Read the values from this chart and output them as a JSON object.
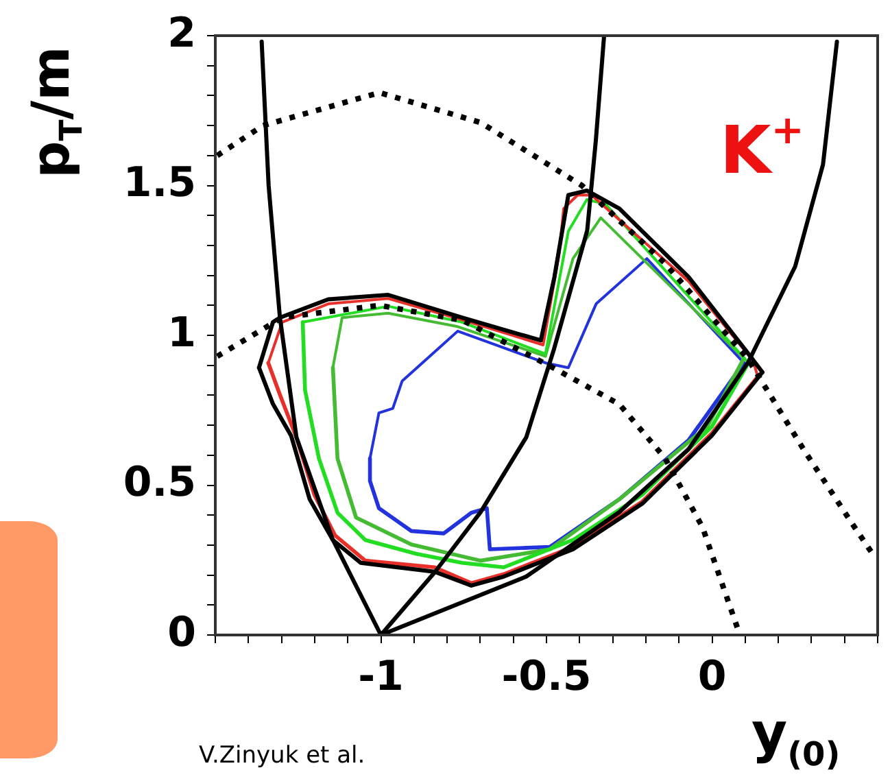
{
  "chart_data": {
    "type": "line",
    "xlabel": "y$_{(0)}$",
    "ylabel": "p$_{T}$/m",
    "annotations": [
      "K$^{+}$",
      "V.Zinyuk et al."
    ],
    "xlim": [
      -1.5,
      0.5
    ],
    "ylim": [
      0,
      2
    ],
    "xticks": [
      {
        "value": -1.5,
        "label": null
      },
      {
        "value": -1.4,
        "label": null
      },
      {
        "value": -1.3,
        "label": null
      },
      {
        "value": -1.2,
        "label": null
      },
      {
        "value": -1.1,
        "label": null
      },
      -1,
      {
        "value": -0.9,
        "label": null
      },
      {
        "value": -0.8,
        "label": null
      },
      {
        "value": -0.7,
        "label": null
      },
      {
        "value": -0.6,
        "label": null
      },
      -0.5,
      {
        "value": -0.4,
        "label": null
      },
      {
        "value": -0.3,
        "label": null
      },
      {
        "value": -0.2,
        "label": null
      },
      {
        "value": -0.1,
        "label": null
      },
      0,
      {
        "value": 0.1,
        "label": null
      },
      {
        "value": 0.2,
        "label": null
      },
      {
        "value": 0.3,
        "label": null
      },
      {
        "value": 0.4,
        "label": null
      },
      {
        "value": 0.5,
        "label": null
      }
    ],
    "yticks": [
      0,
      {
        "value": 0.1,
        "label": null
      },
      {
        "value": 0.2,
        "label": null
      },
      {
        "value": 0.3,
        "label": null
      },
      {
        "value": 0.4,
        "label": null
      },
      0.5,
      {
        "value": 0.6,
        "label": null
      },
      {
        "value": 0.7,
        "label": null
      },
      {
        "value": 0.8,
        "label": null
      },
      {
        "value": 0.9,
        "label": null
      },
      1,
      {
        "value": 1.1,
        "label": null
      },
      {
        "value": 1.2,
        "label": null
      },
      {
        "value": 1.3,
        "label": null
      },
      {
        "value": 1.4,
        "label": null
      },
      1.5,
      {
        "value": 1.6,
        "label": null
      },
      {
        "value": 1.7,
        "label": null
      },
      {
        "value": 1.8,
        "label": null
      },
      {
        "value": 1.9,
        "label": null
      },
      2
    ],
    "grid": false,
    "legend": false,
    "marker": "none",
    "series": [
      {
        "color": "#000000",
        "line_style": "solid",
        "x": [
          -1.36,
          -1.339,
          -1.305,
          -1.255,
          -1.146,
          -1.0
        ],
        "values": [
          1.98,
          1.5,
          1.06,
          0.66,
          0.32,
          0
        ]
      },
      {
        "color": "#000000",
        "line_style": "solid",
        "x": [
          -0.326,
          -0.351,
          -0.377,
          -0.477,
          -0.561,
          -0.699,
          -0.837,
          -1
        ],
        "values": [
          2.0,
          1.65,
          1.35,
          0.955,
          0.66,
          0.41,
          0.21,
          0
        ]
      },
      {
        "color": "#000000",
        "line_style": "solid",
        "x": [
          0.377,
          0.335,
          0.251,
          0.109,
          -0.071,
          -0.28,
          -0.561,
          -1
        ],
        "values": [
          1.98,
          1.57,
          1.23,
          0.91,
          0.62,
          0.41,
          0.195,
          0
        ]
      },
      {
        "color": "#000000",
        "line_style": "dotted",
        "x": [
          -1.494,
          -1.356,
          -1.004,
          -0.699,
          -0.393,
          -0.142,
          0.109,
          0.276,
          0.418,
          0.485
        ],
        "values": [
          1.6,
          1.7,
          1.81,
          1.71,
          1.5,
          1.24,
          0.92,
          0.62,
          0.38,
          0.27
        ]
      },
      {
        "color": "#000000",
        "line_style": "dotted",
        "x": [
          -1.494,
          -1.297,
          -1.004,
          -0.753,
          -0.477,
          -0.28,
          -0.142,
          -0.029,
          0.084
        ],
        "values": [
          0.93,
          1.06,
          1.1,
          1.05,
          0.89,
          0.77,
          0.59,
          0.36,
          0
        ]
      },
      {
        "color": "#000000",
        "line_style": "solid",
        "x": [
          -1.368,
          -1.326,
          -1.305,
          -1.159,
          -0.978,
          -0.755,
          -0.517,
          -0.476,
          -0.434,
          -0.378,
          -0.28,
          -0.071,
          0.11,
          0.152
        ],
        "values": [
          0.892,
          1.044,
          1.059,
          1.12,
          1.135,
          1.059,
          0.983,
          1.195,
          1.468,
          1.483,
          1.423,
          1.195,
          0.938,
          0.877
        ]
      },
      {
        "color": "#000000",
        "line_style": "solid",
        "x": [
          -1.368,
          -1.326,
          -1.271,
          -1.215,
          -1.145,
          -1.061,
          -0.95,
          -0.838,
          -0.727,
          -0.629,
          -0.42,
          -0.211,
          -0.001,
          0.152
        ],
        "values": [
          0.892,
          0.771,
          0.665,
          0.453,
          0.317,
          0.241,
          0.226,
          0.211,
          0.165,
          0.195,
          0.286,
          0.438,
          0.665,
          0.877
        ]
      },
      {
        "color": "#e8302a",
        "line_style": "solid",
        "x": [
          -1.34,
          -1.298,
          -1.159,
          -0.978,
          -0.755,
          -0.51,
          -0.462,
          -0.448,
          -0.406,
          -0.364,
          -0.071,
          0.124,
          0.138
        ],
        "values": [
          0.908,
          1.044,
          1.105,
          1.123,
          1.052,
          0.968,
          1.271,
          1.423,
          1.468,
          1.468,
          1.18,
          0.915,
          0.862
        ]
      },
      {
        "color": "#e8302a",
        "line_style": "solid",
        "x": [
          -1.34,
          -1.305,
          -1.257,
          -1.201,
          -1.138,
          -1.047,
          -0.838,
          -0.727,
          -0.629,
          -0.42,
          -0.211,
          -0.001,
          0.138
        ],
        "values": [
          0.908,
          0.802,
          0.665,
          0.468,
          0.332,
          0.248,
          0.226,
          0.173,
          0.203,
          0.294,
          0.445,
          0.673,
          0.862
        ]
      },
      {
        "color": "#22dd22",
        "line_style": "solid",
        "x": [
          -1.236,
          -0.978,
          -0.755,
          -0.503,
          -0.434,
          -0.378,
          -0.322,
          0.11
        ],
        "values": [
          1.044,
          1.097,
          1.044,
          0.938,
          1.347,
          1.453,
          1.438,
          0.908
        ]
      },
      {
        "color": "#22dd22",
        "line_style": "solid",
        "x": [
          -1.236,
          -1.229,
          -1.187,
          -1.131,
          -1.047,
          -0.894,
          -0.755,
          -0.629,
          -0.42,
          -0.211,
          -0.001,
          0.11
        ],
        "values": [
          1.044,
          0.817,
          0.589,
          0.408,
          0.317,
          0.271,
          0.241,
          0.226,
          0.317,
          0.468,
          0.695,
          0.908
        ]
      },
      {
        "color": "#44bb33",
        "line_style": "solid",
        "x": [
          -1.145,
          -1.117,
          -0.978,
          -0.768,
          -0.503,
          -0.42,
          -0.336,
          0.096
        ],
        "values": [
          0.892,
          1.059,
          1.074,
          1.029,
          0.93,
          1.256,
          1.392,
          0.923
        ]
      },
      {
        "color": "#44bb33",
        "line_style": "solid",
        "x": [
          -1.145,
          -1.131,
          -1.075,
          -0.908,
          -0.699,
          -0.49,
          -0.28,
          -0.015,
          0.096
        ],
        "values": [
          0.892,
          0.589,
          0.392,
          0.302,
          0.248,
          0.286,
          0.453,
          0.695,
          0.923
        ]
      },
      {
        "color": "#2233dd",
        "line_style": "solid",
        "x": [
          -1.033,
          -1.006,
          -0.964,
          -0.936,
          -0.768,
          -0.503,
          -0.434,
          -0.35,
          -0.197,
          0.096
        ],
        "values": [
          0.589,
          0.741,
          0.756,
          0.847,
          1.014,
          0.908,
          0.892,
          1.105,
          1.256,
          0.908
        ]
      },
      {
        "color": "#2233dd",
        "line_style": "solid",
        "x": [
          -1.033,
          -1.033,
          -1.006,
          -0.908,
          -0.81,
          -0.727,
          -0.68,
          -0.671,
          -0.49,
          -0.28,
          -0.071,
          0.096
        ],
        "values": [
          0.589,
          0.514,
          0.423,
          0.347,
          0.339,
          0.408,
          0.423,
          0.286,
          0.294,
          0.453,
          0.65,
          0.908
        ]
      }
    ]
  }
}
